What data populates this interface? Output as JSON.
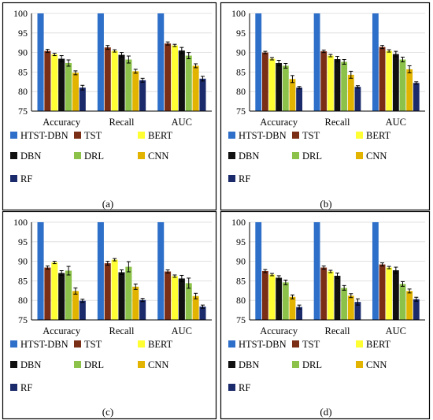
{
  "colors": {
    "HTST-DBN": "#2E6FC9",
    "TST": "#7B2E16",
    "BERT": "#FFFF33",
    "DBN": "#111111",
    "DRL": "#8CC24A",
    "CNN": "#E2B400",
    "RF": "#1B2A6B"
  },
  "panel_labels": [
    "(a)",
    "(b)",
    "(c)",
    "(d)"
  ],
  "chart_data": [
    {
      "type": "bar",
      "categories": [
        "Accuracy",
        "Recall",
        "AUC"
      ],
      "ylim": [
        75,
        100
      ],
      "yticks": [
        75,
        80,
        85,
        90,
        95,
        100
      ],
      "legend_placement": "bottom",
      "series": [
        {
          "name": "HTST-DBN",
          "values": [
            100,
            100,
            100
          ],
          "err": [
            0,
            0,
            0
          ]
        },
        {
          "name": "TST",
          "values": [
            90.4,
            91.3,
            92.3
          ],
          "err": [
            0.4,
            0.5,
            0.4
          ]
        },
        {
          "name": "BERT",
          "values": [
            89.5,
            90.4,
            91.8
          ],
          "err": [
            0.3,
            0.3,
            0.3
          ]
        },
        {
          "name": "DBN",
          "values": [
            88.4,
            89.4,
            90.5
          ],
          "err": [
            0.8,
            0.6,
            0.8
          ]
        },
        {
          "name": "DRL",
          "values": [
            87.3,
            88.2,
            89.2
          ],
          "err": [
            0.8,
            0.9,
            0.8
          ]
        },
        {
          "name": "CNN",
          "values": [
            84.8,
            85.2,
            86.6
          ],
          "err": [
            0.5,
            0.5,
            0.5
          ]
        },
        {
          "name": "RF",
          "values": [
            81.0,
            82.9,
            83.3
          ],
          "err": [
            0.6,
            0.5,
            0.6
          ]
        }
      ]
    },
    {
      "type": "bar",
      "categories": [
        "Accuracy",
        "Recall",
        "AUC"
      ],
      "ylim": [
        75,
        100
      ],
      "yticks": [
        75,
        80,
        85,
        90,
        95,
        100
      ],
      "legend_placement": "bottom",
      "series": [
        {
          "name": "HTST-DBN",
          "values": [
            100,
            100,
            100
          ],
          "err": [
            0,
            0,
            0
          ]
        },
        {
          "name": "TST",
          "values": [
            90.0,
            90.3,
            91.4
          ],
          "err": [
            0.3,
            0.3,
            0.4
          ]
        },
        {
          "name": "BERT",
          "values": [
            88.4,
            89.2,
            90.4
          ],
          "err": [
            0.3,
            0.3,
            0.3
          ]
        },
        {
          "name": "DBN",
          "values": [
            87.3,
            88.3,
            89.6
          ],
          "err": [
            0.7,
            0.7,
            0.7
          ]
        },
        {
          "name": "DRL",
          "values": [
            86.6,
            87.6,
            88.2
          ],
          "err": [
            0.6,
            0.6,
            0.6
          ]
        },
        {
          "name": "CNN",
          "values": [
            83.2,
            84.3,
            85.7
          ],
          "err": [
            0.9,
            0.9,
            0.9
          ]
        },
        {
          "name": "RF",
          "values": [
            81.0,
            81.2,
            82.2
          ],
          "err": [
            0.3,
            0.3,
            0.3
          ]
        }
      ]
    },
    {
      "type": "bar",
      "categories": [
        "Accuracy",
        "Recall",
        "AUC"
      ],
      "ylim": [
        75,
        100
      ],
      "yticks": [
        75,
        80,
        85,
        90,
        95,
        100
      ],
      "legend_placement": "bottom",
      "series": [
        {
          "name": "HTST-DBN",
          "values": [
            100,
            100,
            100
          ],
          "err": [
            0,
            0,
            0
          ]
        },
        {
          "name": "TST",
          "values": [
            88.4,
            89.5,
            87.4
          ],
          "err": [
            0.4,
            0.5,
            0.4
          ]
        },
        {
          "name": "BERT",
          "values": [
            89.7,
            90.4,
            86.2
          ],
          "err": [
            0.3,
            0.3,
            0.3
          ]
        },
        {
          "name": "DBN",
          "values": [
            87.0,
            87.2,
            85.6
          ],
          "err": [
            0.6,
            0.6,
            0.8
          ]
        },
        {
          "name": "DRL",
          "values": [
            87.6,
            88.6,
            84.4
          ],
          "err": [
            1.1,
            1.3,
            1.3
          ]
        },
        {
          "name": "CNN",
          "values": [
            82.4,
            83.5,
            81.1
          ],
          "err": [
            0.8,
            0.7,
            0.7
          ]
        },
        {
          "name": "RF",
          "values": [
            79.9,
            80.1,
            78.4
          ],
          "err": [
            0.4,
            0.4,
            0.4
          ]
        }
      ]
    },
    {
      "type": "bar",
      "categories": [
        "Accuracy",
        "Recall",
        "AUC"
      ],
      "ylim": [
        75,
        100
      ],
      "yticks": [
        75,
        80,
        85,
        90,
        95,
        100
      ],
      "legend_placement": "bottom",
      "series": [
        {
          "name": "HTST-DBN",
          "values": [
            100,
            100,
            100
          ],
          "err": [
            0,
            0,
            0
          ]
        },
        {
          "name": "TST",
          "values": [
            87.5,
            88.4,
            89.2
          ],
          "err": [
            0.4,
            0.4,
            0.4
          ]
        },
        {
          "name": "BERT",
          "values": [
            86.6,
            87.4,
            88.4
          ],
          "err": [
            0.3,
            0.3,
            0.3
          ]
        },
        {
          "name": "DBN",
          "values": [
            85.8,
            86.3,
            87.7
          ],
          "err": [
            0.5,
            0.7,
            0.8
          ]
        },
        {
          "name": "DRL",
          "values": [
            84.6,
            83.2,
            84.2
          ],
          "err": [
            0.6,
            0.6,
            0.6
          ]
        },
        {
          "name": "CNN",
          "values": [
            80.9,
            81.2,
            82.4
          ],
          "err": [
            0.5,
            0.5,
            0.5
          ]
        },
        {
          "name": "RF",
          "values": [
            78.3,
            79.6,
            80.3
          ],
          "err": [
            0.5,
            0.8,
            0.5
          ]
        }
      ]
    }
  ]
}
